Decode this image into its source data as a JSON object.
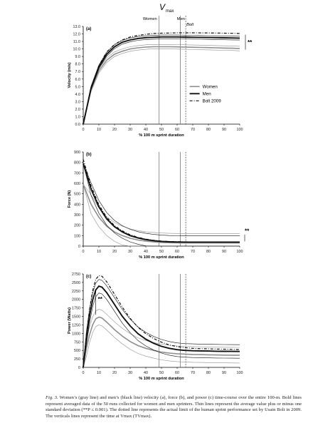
{
  "header": {
    "vmax_label": "V",
    "vmax_sub": "max",
    "vertical_labels": [
      "Women",
      "Men",
      "Bolt"
    ]
  },
  "chart_data": [
    {
      "type": "line",
      "panel_label": "(a)",
      "ylabel": "Velocity (m/s)",
      "xlabel": "% 100 m sprint duration",
      "xlim": [
        0,
        100
      ],
      "ylim": [
        0,
        13
      ],
      "x_ticks": [
        0,
        10,
        20,
        30,
        40,
        50,
        60,
        70,
        80,
        90,
        100
      ],
      "y_ticks": [
        0.0,
        1.0,
        2.0,
        3.0,
        4.0,
        5.0,
        6.0,
        7.0,
        8.0,
        9.0,
        10.0,
        11.0,
        12.0,
        13.0
      ],
      "legend": {
        "placement": "right",
        "entries": [
          "Women",
          "Men",
          "Bolt 2009"
        ]
      },
      "annotation": "**",
      "verticals_x": [
        48.5,
        62,
        65.5
      ],
      "x": [
        0,
        5,
        10,
        15,
        20,
        25,
        30,
        35,
        40,
        45,
        50,
        55,
        60,
        65,
        70,
        75,
        80,
        85,
        90,
        95,
        100
      ],
      "series": [
        {
          "name": "Women",
          "values": [
            0.0,
            4.6,
            7.1,
            8.5,
            9.3,
            9.7,
            10.0,
            10.15,
            10.25,
            10.3,
            10.3,
            10.3,
            10.28,
            10.25,
            10.22,
            10.2,
            10.18,
            10.15,
            10.12,
            10.1,
            10.05
          ],
          "sd": 0.3
        },
        {
          "name": "Men",
          "values": [
            0.0,
            4.8,
            7.6,
            9.3,
            10.3,
            10.9,
            11.2,
            11.4,
            11.5,
            11.55,
            11.6,
            11.6,
            11.6,
            11.58,
            11.56,
            11.54,
            11.52,
            11.5,
            11.48,
            11.46,
            11.44
          ],
          "sd": 0.25
        },
        {
          "name": "Bolt 2009",
          "values": [
            0.0,
            4.9,
            7.8,
            9.6,
            10.6,
            11.2,
            11.6,
            11.8,
            11.95,
            12.05,
            12.1,
            12.12,
            12.15,
            12.15,
            12.15,
            12.14,
            12.13,
            12.12,
            12.1,
            12.08,
            12.05
          ]
        }
      ]
    },
    {
      "type": "line",
      "panel_label": "(b)",
      "ylabel": "Force (N)",
      "xlabel": "% 100 m sprint duration",
      "xlim": [
        0,
        100
      ],
      "ylim": [
        0,
        900
      ],
      "x_ticks": [
        0,
        10,
        20,
        30,
        40,
        50,
        60,
        70,
        80,
        90,
        100
      ],
      "y_ticks": [
        0,
        100,
        200,
        300,
        400,
        500,
        600,
        700,
        800,
        900
      ],
      "annotation": "**",
      "verticals_x": [
        48.5,
        62,
        65.5
      ],
      "x": [
        0,
        5,
        10,
        15,
        20,
        25,
        30,
        35,
        40,
        45,
        50,
        55,
        60,
        65,
        70,
        75,
        80,
        85,
        90,
        95,
        100
      ],
      "series": [
        {
          "name": "Women",
          "values": [
            590,
            400,
            275,
            190,
            135,
            100,
            75,
            58,
            47,
            40,
            35,
            32,
            31,
            30,
            30,
            30,
            30,
            30,
            30,
            30,
            30
          ],
          "sd": 90
        },
        {
          "name": "Men",
          "values": [
            790,
            545,
            375,
            260,
            185,
            135,
            100,
            78,
            62,
            52,
            45,
            41,
            39,
            38,
            38,
            38,
            38,
            38,
            38,
            38,
            38
          ],
          "sd": 60
        },
        {
          "name": "Bolt 2009",
          "values": [
            830,
            575,
            395,
            275,
            195,
            145,
            108,
            84,
            67,
            56,
            48,
            44,
            42,
            41,
            40,
            40,
            40,
            40,
            40,
            40,
            40
          ]
        }
      ]
    },
    {
      "type": "line",
      "panel_label": "(c)",
      "ylabel": "Power (Watts)",
      "xlabel": "% 100 m sprint duration",
      "xlim": [
        0,
        100
      ],
      "ylim": [
        0,
        2750
      ],
      "x_ticks": [
        0,
        10,
        20,
        30,
        40,
        50,
        60,
        70,
        80,
        90,
        100
      ],
      "y_ticks": [
        0,
        250,
        500,
        750,
        1000,
        1250,
        1500,
        1750,
        2000,
        2250,
        2500,
        2750
      ],
      "annotation": "**",
      "verticals_x": [
        48.5,
        62,
        65.5
      ],
      "x": [
        0,
        2,
        4,
        6,
        8,
        10,
        12,
        15,
        20,
        25,
        30,
        35,
        40,
        45,
        50,
        55,
        60,
        65,
        70,
        75,
        80,
        85,
        90,
        95,
        100
      ],
      "series": [
        {
          "name": "Women",
          "values": [
            0,
            550,
            950,
            1250,
            1430,
            1480,
            1450,
            1330,
            1110,
            920,
            760,
            640,
            560,
            500,
            450,
            420,
            400,
            390,
            380,
            375,
            370,
            365,
            362,
            360,
            358
          ],
          "sd": 230
        },
        {
          "name": "Men",
          "values": [
            0,
            850,
            1500,
            1980,
            2280,
            2390,
            2360,
            2200,
            1850,
            1500,
            1220,
            990,
            830,
            710,
            620,
            560,
            520,
            500,
            490,
            485,
            480,
            475,
            472,
            470,
            468
          ],
          "sd": 200
        },
        {
          "name": "Bolt 2009",
          "values": [
            0,
            950,
            1700,
            2250,
            2590,
            2700,
            2680,
            2520,
            2150,
            1770,
            1440,
            1180,
            990,
            850,
            740,
            660,
            610,
            580,
            560,
            550,
            545,
            540,
            535,
            530,
            525
          ]
        }
      ]
    }
  ],
  "caption": {
    "lead": "Fig. 3.",
    "text": " Women’s (gray line) and men’s (black line) velocity (a), force (b), and power (c) time-course over the entire 100-m. Bold lines represent averaged data of the 50 runs collected for women and men sprinters. Thin lines represent the average value plus or minus one standard deviation (**P ≤ 0.001). The dotted line represents the actual limit of the human sprint performance set by Usain Bolt in 2009. The verticals lines represent the time at Vmax (TVmax)."
  }
}
